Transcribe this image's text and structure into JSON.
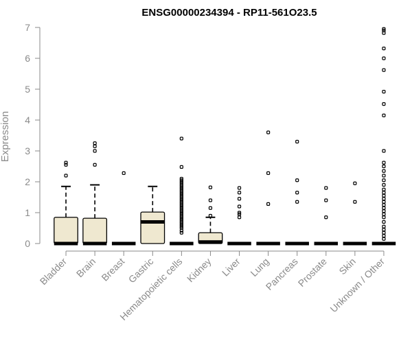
{
  "chart_data": {
    "type": "boxplot",
    "title": "ENSG00000234394 - RP11-561O23.5",
    "ylabel": "Expression",
    "ylim": [
      0,
      7
    ],
    "yticks": [
      0,
      1,
      2,
      3,
      4,
      5,
      6,
      7
    ],
    "box_fill": "#efe8d0",
    "categories": [
      "Bladder",
      "Brain",
      "Breast",
      "Gastric",
      "Hematopoietic cells",
      "Kidney",
      "Liver",
      "Lung",
      "Pancreas",
      "Prostate",
      "Skin",
      "Unknown / Other"
    ],
    "boxes": [
      {
        "category": "Bladder",
        "q1": 0,
        "median": 0,
        "q3": 0.85,
        "whisker_low": 0,
        "whisker_high": 1.85,
        "outliers": [
          2.2,
          2.55,
          2.62
        ]
      },
      {
        "category": "Brain",
        "q1": 0,
        "median": 0,
        "q3": 0.82,
        "whisker_low": 0,
        "whisker_high": 1.9,
        "outliers": [
          2.55,
          3.0,
          3.15,
          3.25
        ]
      },
      {
        "category": "Breast",
        "q1": 0,
        "median": 0,
        "q3": 0,
        "whisker_low": 0,
        "whisker_high": 0,
        "outliers": [
          2.28
        ]
      },
      {
        "category": "Gastric",
        "q1": 0,
        "median": 0.7,
        "q3": 1.02,
        "whisker_low": 0,
        "whisker_high": 1.85,
        "outliers": []
      },
      {
        "category": "Hematopoietic cells",
        "q1": 0,
        "median": 0,
        "q3": 0,
        "whisker_low": 0,
        "whisker_high": 0,
        "outliers": [
          0.35,
          0.42,
          0.5,
          0.55,
          0.6,
          0.65,
          0.7,
          0.75,
          0.8,
          0.85,
          0.9,
          0.95,
          1.0,
          1.05,
          1.1,
          1.15,
          1.2,
          1.25,
          1.3,
          1.35,
          1.4,
          1.45,
          1.5,
          1.55,
          1.6,
          1.65,
          1.7,
          1.75,
          1.8,
          1.85,
          1.9,
          1.95,
          2.0,
          2.05,
          2.1,
          2.48,
          3.4
        ]
      },
      {
        "category": "Kidney",
        "q1": 0,
        "median": 0.05,
        "q3": 0.35,
        "whisker_low": 0,
        "whisker_high": 0.85,
        "outliers": [
          0.9,
          1.15,
          1.4,
          1.82
        ]
      },
      {
        "category": "Liver",
        "q1": 0,
        "median": 0,
        "q3": 0,
        "whisker_low": 0,
        "whisker_high": 0,
        "outliers": [
          0.85,
          0.95,
          1.0,
          1.2,
          1.45,
          1.65,
          1.8
        ]
      },
      {
        "category": "Lung",
        "q1": 0,
        "median": 0,
        "q3": 0,
        "whisker_low": 0,
        "whisker_high": 0,
        "outliers": [
          1.28,
          2.28,
          3.6
        ]
      },
      {
        "category": "Pancreas",
        "q1": 0,
        "median": 0,
        "q3": 0,
        "whisker_low": 0,
        "whisker_high": 0,
        "outliers": [
          1.35,
          1.65,
          2.05,
          3.3
        ]
      },
      {
        "category": "Prostate",
        "q1": 0,
        "median": 0,
        "q3": 0,
        "whisker_low": 0,
        "whisker_high": 0,
        "outliers": [
          0.85,
          1.4,
          1.8
        ]
      },
      {
        "category": "Skin",
        "q1": 0,
        "median": 0,
        "q3": 0,
        "whisker_low": 0,
        "whisker_high": 0,
        "outliers": [
          1.35,
          1.95
        ]
      },
      {
        "category": "Unknown / Other",
        "q1": 0,
        "median": 0,
        "q3": 0,
        "whisker_low": 0,
        "whisker_high": 0,
        "outliers": [
          0.15,
          0.25,
          0.35,
          0.45,
          0.55,
          0.7,
          0.85,
          0.95,
          1.05,
          1.15,
          1.25,
          1.35,
          1.45,
          1.55,
          1.65,
          1.75,
          1.9,
          2.05,
          2.2,
          2.35,
          2.5,
          2.62,
          3.0,
          4.15,
          4.52,
          4.92,
          5.62,
          6.0,
          6.32,
          6.82,
          6.9,
          6.95
        ]
      }
    ]
  }
}
